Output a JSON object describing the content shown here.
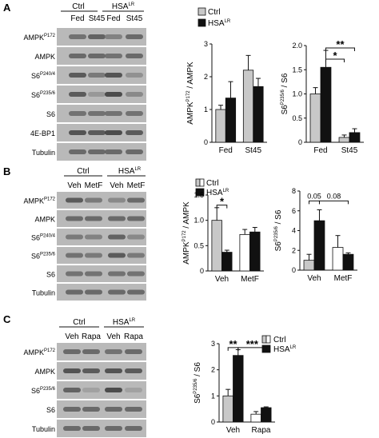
{
  "panels": [
    {
      "letter": "A",
      "groups": [
        {
          "label": "Ctrl"
        },
        {
          "label": "HSA",
          "sup": "LR"
        }
      ],
      "subgroups": [
        "Fed",
        "St45",
        "Fed",
        "St45"
      ],
      "blots": [
        {
          "label": "AMPK",
          "sup": "P172"
        },
        {
          "label": "AMPK",
          "sup": ""
        },
        {
          "label": "S6",
          "sup": "P240/4"
        },
        {
          "label": "S6",
          "sup": "P235/6"
        },
        {
          "label": "S6",
          "sup": ""
        },
        {
          "label": "4E-BP1",
          "sup": ""
        },
        {
          "label": "Tubulin",
          "sup": ""
        }
      ]
    },
    {
      "letter": "B",
      "groups": [
        {
          "label": "Ctrl"
        },
        {
          "label": "HSA",
          "sup": "LR"
        }
      ],
      "subgroups": [
        "Veh",
        "MetF",
        "Veh",
        "MetF"
      ],
      "blots": [
        {
          "label": "AMPK",
          "sup": "P172"
        },
        {
          "label": "AMPK",
          "sup": ""
        },
        {
          "label": "S6",
          "sup": "P240/4"
        },
        {
          "label": "S6",
          "sup": "P235/6"
        },
        {
          "label": "S6",
          "sup": ""
        },
        {
          "label": "Tubulin",
          "sup": ""
        }
      ]
    },
    {
      "letter": "C",
      "groups": [
        {
          "label": "Ctrl"
        },
        {
          "label": "HSA",
          "sup": "LR"
        }
      ],
      "subgroups": [
        "Veh",
        "Rapa",
        "Veh",
        "Rapa"
      ],
      "blots": [
        {
          "label": "AMPK",
          "sup": "P172"
        },
        {
          "label": "AMPK",
          "sup": ""
        },
        {
          "label": "S6",
          "sup": "P235/6"
        },
        {
          "label": "S6",
          "sup": ""
        },
        {
          "label": "Tubulin",
          "sup": ""
        }
      ]
    }
  ],
  "legend_entries": [
    {
      "label": "Ctrl",
      "sup": ""
    },
    {
      "label": "HSA",
      "sup": "LR"
    }
  ],
  "colors": {
    "ctrl_a": "#c8c8c8",
    "ctrl_b": "#ffffff",
    "ctrl_c": "#c8c8c8",
    "hsa": "#111111"
  },
  "chart_data": [
    {
      "id": "A1",
      "type": "bar",
      "categories": [
        "Fed",
        "St45"
      ],
      "ylabel": {
        "base": "AMPK",
        "sup": "P172",
        "rest": " / AMPK"
      },
      "ylim": [
        0,
        3
      ],
      "yticks": [
        "0",
        "1",
        "2",
        "3"
      ],
      "series": [
        {
          "name": "Ctrl",
          "values": [
            1.0,
            2.2
          ],
          "errors": [
            0.13,
            0.45
          ]
        },
        {
          "name": "HSA^LR",
          "values": [
            1.35,
            1.7
          ],
          "errors": [
            0.5,
            0.25
          ]
        }
      ],
      "annotations": []
    },
    {
      "id": "A2",
      "type": "bar",
      "categories": [
        "Fed",
        "St45"
      ],
      "ylabel": {
        "base": "S6",
        "sup": "P235/6",
        "rest": " / S6"
      },
      "ylim": [
        0,
        2
      ],
      "yticks": [
        "0",
        "0.5",
        "1.0",
        "1.5",
        "2.0"
      ],
      "series": [
        {
          "name": "Ctrl",
          "values": [
            1.0,
            0.1
          ],
          "errors": [
            0.13,
            0.05
          ]
        },
        {
          "name": "HSA^LR",
          "values": [
            1.55,
            0.2
          ],
          "errors": [
            0.35,
            0.08
          ]
        }
      ],
      "annotations": [
        {
          "from": [
            0,
            1
          ],
          "to": [
            1,
            0
          ],
          "label": "*",
          "y": 1.72
        },
        {
          "from": [
            0,
            1
          ],
          "to": [
            1,
            1
          ],
          "label": "**",
          "y": 1.95
        }
      ]
    },
    {
      "id": "B1",
      "type": "bar",
      "categories": [
        "Veh",
        "MetF"
      ],
      "ylabel": {
        "base": "AMPK",
        "sup": "P172",
        "rest": " / AMPK"
      },
      "ylim": [
        0,
        1.5
      ],
      "yticks": [
        "0",
        "0.5",
        "1.0",
        "1.5"
      ],
      "series": [
        {
          "name": "Ctrl",
          "values": [
            1.0,
            0.72
          ],
          "errors": [
            0.25,
            0.1
          ]
        },
        {
          "name": "HSA^LR",
          "values": [
            0.37,
            0.77
          ],
          "errors": [
            0.04,
            0.09
          ]
        }
      ],
      "annotations": [
        {
          "from": [
            0,
            0
          ],
          "to": [
            0,
            1
          ],
          "label": "*",
          "y": 1.3
        }
      ]
    },
    {
      "id": "B2",
      "type": "bar",
      "categories": [
        "Veh",
        "MetF"
      ],
      "ylabel": {
        "base": "S6",
        "sup": "P235/6",
        "rest": " / S6"
      },
      "ylim": [
        0,
        8
      ],
      "yticks": [
        "0",
        "2",
        "4",
        "6",
        "8"
      ],
      "series": [
        {
          "name": "Ctrl",
          "values": [
            1.0,
            2.3
          ],
          "errors": [
            0.6,
            1.2
          ]
        },
        {
          "name": "HSA^LR",
          "values": [
            5.0,
            1.6
          ],
          "errors": [
            1.1,
            0.15
          ]
        }
      ],
      "annotations": [
        {
          "from": [
            0,
            0
          ],
          "to": [
            0,
            1
          ],
          "label": "0.05",
          "y": 7.0
        },
        {
          "from": [
            0,
            1
          ],
          "to": [
            1,
            1
          ],
          "label": "0.08",
          "y": 7.0
        }
      ]
    },
    {
      "id": "C1",
      "type": "bar",
      "categories": [
        "Veh",
        "Rapa"
      ],
      "ylabel": {
        "base": "S6",
        "sup": "P235/6",
        "rest": " / S6"
      },
      "ylim": [
        0,
        3
      ],
      "yticks": [
        "0",
        "1",
        "2",
        "3"
      ],
      "series": [
        {
          "name": "Ctrl",
          "values": [
            1.0,
            0.3
          ],
          "errors": [
            0.25,
            0.1
          ]
        },
        {
          "name": "HSA^LR",
          "values": [
            2.55,
            0.55
          ],
          "errors": [
            0.22,
            0.03
          ]
        }
      ],
      "annotations": [
        {
          "from": [
            0,
            0
          ],
          "to": [
            0,
            1
          ],
          "label": "**",
          "y": 2.85
        },
        {
          "from": [
            0,
            1
          ],
          "to": [
            1,
            1
          ],
          "label": "***",
          "y": 2.85
        }
      ]
    }
  ]
}
